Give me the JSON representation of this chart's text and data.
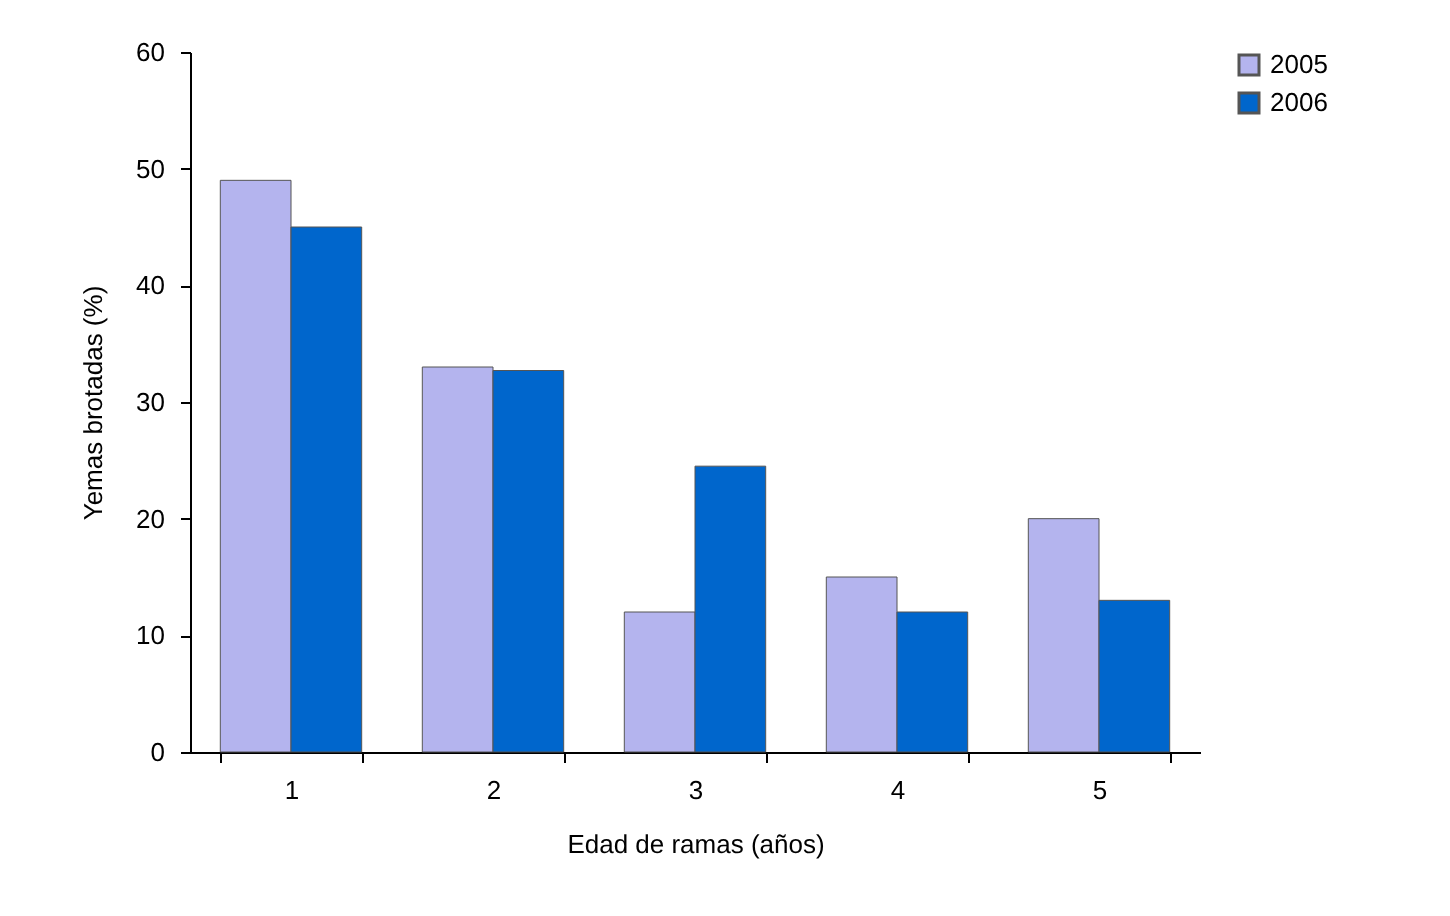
{
  "chart_data": {
    "type": "bar",
    "xlabel": "Edad de ramas (años)",
    "ylabel": "Yemas brotadas (%)",
    "categories": [
      "1",
      "2",
      "3",
      "4",
      "5"
    ],
    "series": [
      {
        "name": "2005",
        "color": "#b4b4ee",
        "values": [
          49,
          33,
          12,
          15,
          20
        ]
      },
      {
        "name": "2006",
        "color": "#0066cc",
        "values": [
          45,
          32.7,
          24.5,
          12,
          13
        ]
      }
    ],
    "ylim": [
      0,
      60
    ],
    "yticks": [
      0,
      10,
      20,
      30,
      40,
      50,
      60
    ],
    "grid": false,
    "legend": "right"
  }
}
